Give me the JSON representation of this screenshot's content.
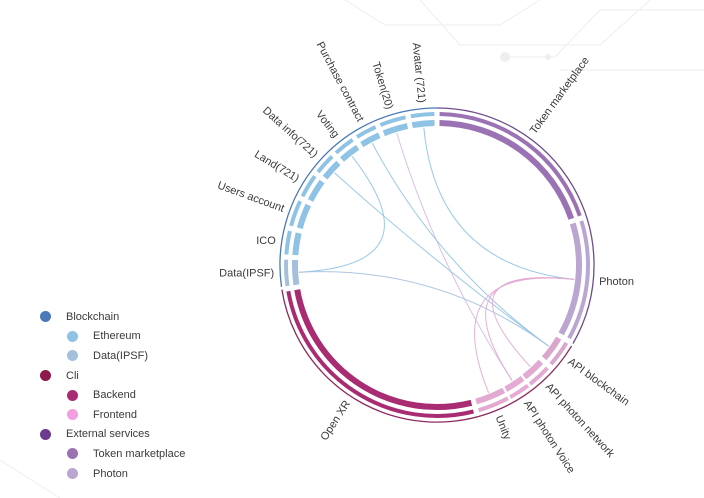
{
  "diagram": {
    "segments": [
      {
        "label": "Token marketplace",
        "color": "#9b72b3"
      },
      {
        "label": "Photon",
        "color": "#bba6d1"
      },
      {
        "label": "API blockchain",
        "color": "#d9a7cc"
      },
      {
        "label": "API photon network",
        "color": "#e2a9d2"
      },
      {
        "label": "API photon Voice",
        "color": "#e6aad4"
      },
      {
        "label": "Unity",
        "color": "#e3a9d1"
      },
      {
        "label": "Open XR",
        "color": "#a92b72"
      },
      {
        "label": "Data(IPSF)",
        "color": "#a4c0dd"
      },
      {
        "label": "ICO",
        "color": "#8fc3e6"
      },
      {
        "label": "Users account",
        "color": "#8fc3e6"
      },
      {
        "label": "Land(721)",
        "color": "#8fc3e6"
      },
      {
        "label": "Data info(721)",
        "color": "#8fc3e6"
      },
      {
        "label": "Voting",
        "color": "#8fc3e6"
      },
      {
        "label": "Purchase contract",
        "color": "#8fc3e6"
      },
      {
        "label": "Token(20)",
        "color": "#8fc3e6"
      },
      {
        "label": "Avatar (721)",
        "color": "#8fc3e6"
      }
    ],
    "groups": [
      {
        "color": "#6d4c8e"
      },
      {
        "color": "#8d2a5e"
      },
      {
        "color": "#4a78b8"
      }
    ],
    "links": [
      {
        "from": "Avatar (721)",
        "to": "Photon",
        "color": "#8fc3e6"
      },
      {
        "from": "Token(20)",
        "to": "API photon Voice",
        "color": "#d7b8e3"
      },
      {
        "from": "Purchase contract",
        "to": "API blockchain",
        "color": "#8fc3e6"
      },
      {
        "from": "Data info(721)",
        "to": "API blockchain",
        "color": "#8fc3e6"
      },
      {
        "from": "Voting",
        "to": "Data(IPSF)",
        "color": "#8fc3e6"
      },
      {
        "from": "Data(IPSF)",
        "to": "API blockchain",
        "color": "#a4c0dd"
      },
      {
        "from": "Photon",
        "to": "Unity",
        "color": "#e2a9d2"
      },
      {
        "from": "Photon",
        "to": "API photon network",
        "color": "#e2a9d2"
      },
      {
        "from": "Photon",
        "to": "API photon Voice",
        "color": "#e2a9d2"
      }
    ]
  },
  "legend": [
    {
      "label": "Blockchain",
      "color": "#4a78b8",
      "level": 0
    },
    {
      "label": "Ethereum",
      "color": "#8fc3e6",
      "level": 1
    },
    {
      "label": "Data(IPSF)",
      "color": "#a4c0dd",
      "level": 1
    },
    {
      "label": "Cli",
      "color": "#8d1a4b",
      "level": 0
    },
    {
      "label": "Backend",
      "color": "#a92b72",
      "level": 1
    },
    {
      "label": "Frontend",
      "color": "#f29ee0",
      "level": 1
    },
    {
      "label": "External services",
      "color": "#6d3a8e",
      "level": 0
    },
    {
      "label": "Token marketplace",
      "color": "#9b72b3",
      "level": 1
    },
    {
      "label": "Photon",
      "color": "#bba6d1",
      "level": 1
    }
  ]
}
